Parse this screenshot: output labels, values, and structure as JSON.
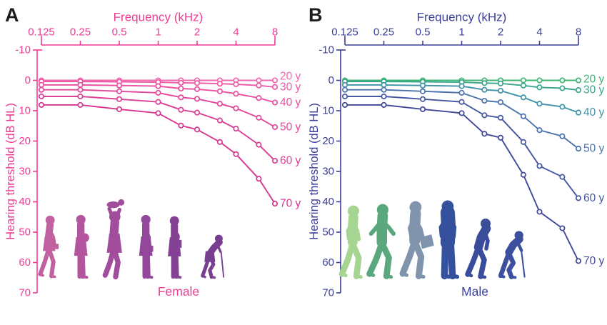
{
  "figure": {
    "background": "#ffffff",
    "panels": [
      {
        "panel_label": "A",
        "panel_label_color": "#1d1d1b",
        "axis_color": "#ee3c95",
        "xlabel": "Frequency (kHz)",
        "ylabel": "Hearing threshold (dB HL)",
        "x_tick_labels": [
          "0.125",
          "0.25",
          "0.5",
          "1",
          "2",
          "4",
          "8"
        ],
        "y_tick_labels": [
          "-10",
          "0",
          "10",
          "20",
          "30",
          "40",
          "50",
          "60",
          "70"
        ],
        "silhouettes": {
          "caption": "Female",
          "items": [
            {
              "name": "young-woman-walking-icon",
              "pose": "walk-bag",
              "color": "#c2619f"
            },
            {
              "name": "pregnant-woman-icon",
              "pose": "stand-pregnant",
              "color": "#b2559e"
            },
            {
              "name": "mother-lifting-baby-icon",
              "pose": "lift-baby",
              "color": "#a14d9c"
            },
            {
              "name": "woman-with-handbag-icon",
              "pose": "stand-bag",
              "color": "#93479a"
            },
            {
              "name": "woman-holding-book-icon",
              "pose": "stand-book",
              "color": "#854295"
            },
            {
              "name": "elderly-woman-cane-icon",
              "pose": "bent-cane-f",
              "color": "#783e90"
            }
          ]
        }
      },
      {
        "panel_label": "B",
        "panel_label_color": "#1d1d1b",
        "axis_color": "#3b3f99",
        "xlabel": "Frequency (kHz)",
        "ylabel": "Hearing threshold (dB HL)",
        "x_tick_labels": [
          "0.125",
          "0.25",
          "0.5",
          "1",
          "2",
          "4",
          "8"
        ],
        "y_tick_labels": [
          "-10",
          "0",
          "10",
          "20",
          "30",
          "40",
          "50",
          "60",
          "70"
        ],
        "silhouettes": {
          "caption": "Male",
          "items": [
            {
              "name": "young-man-walking-icon",
              "pose": "walk",
              "color": "#a6d491"
            },
            {
              "name": "man-walking-icon",
              "pose": "walk-swing",
              "color": "#5ba87e"
            },
            {
              "name": "man-with-briefcase-icon",
              "pose": "walk-briefcase",
              "color": "#8095ad"
            },
            {
              "name": "middle-aged-man-icon",
              "pose": "stand-heavy",
              "color": "#35519e"
            },
            {
              "name": "older-man-stooped-icon",
              "pose": "walk-stoop",
              "color": "#3a4d9b"
            },
            {
              "name": "elderly-man-cane-icon",
              "pose": "bent-cane-m",
              "color": "#3d509f"
            }
          ]
        }
      }
    ]
  },
  "chart_data": [
    {
      "type": "line",
      "title": "A",
      "group": "Female",
      "xlabel": "Frequency (kHz)",
      "ylabel": "Hearing threshold (dB HL)",
      "x_scale": "log2",
      "x": [
        0.125,
        0.25,
        0.5,
        1,
        1.5,
        2,
        3,
        4,
        6,
        8
      ],
      "x_tick_values": [
        0.125,
        0.25,
        0.5,
        1,
        2,
        4,
        8
      ],
      "ylim": [
        -10,
        70
      ],
      "y_axis_inverted": true,
      "grid": false,
      "legend_position": "right-of-line-ends",
      "marker": "open-circle",
      "series": [
        {
          "name": "20 y",
          "color": "#f168ae",
          "values": [
            0,
            0,
            0,
            0,
            0,
            0,
            0,
            0,
            0,
            0
          ]
        },
        {
          "name": "30 y",
          "color": "#ed5aa5",
          "values": [
            0.4,
            0.4,
            0.5,
            0.6,
            0.8,
            0.9,
            1.1,
            1.3,
            1.7,
            2.2
          ]
        },
        {
          "name": "40 y",
          "color": "#e950a0",
          "values": [
            1.5,
            1.5,
            1.7,
            1.9,
            2.7,
            2.9,
            3.6,
            4.4,
            5.8,
            7.3
          ]
        },
        {
          "name": "50 y",
          "color": "#e2479b",
          "values": [
            3.1,
            3.1,
            3.6,
            4.1,
            5.6,
            6.1,
            7.7,
            9.2,
            12.3,
            15.4
          ]
        },
        {
          "name": "60 y",
          "color": "#dc3f96",
          "values": [
            5.3,
            5.3,
            6.2,
            7.1,
            9.7,
            10.6,
            13.2,
            15.9,
            21.2,
            26.5
          ]
        },
        {
          "name": "70 y",
          "color": "#d63791",
          "values": [
            8.1,
            8.1,
            9.5,
            10.8,
            14.9,
            16.2,
            20.3,
            24.3,
            32.4,
            40.6
          ]
        }
      ]
    },
    {
      "type": "line",
      "title": "B",
      "group": "Male",
      "xlabel": "Frequency (kHz)",
      "ylabel": "Hearing threshold (dB HL)",
      "x_scale": "log2",
      "x": [
        0.125,
        0.25,
        0.5,
        1,
        1.5,
        2,
        3,
        4,
        6,
        8
      ],
      "x_tick_values": [
        0.125,
        0.25,
        0.5,
        1,
        2,
        4,
        8
      ],
      "ylim": [
        -10,
        70
      ],
      "y_axis_inverted": true,
      "grid": false,
      "legend_position": "right-of-line-ends",
      "marker": "open-circle",
      "series": [
        {
          "name": "20 y",
          "color": "#3fb573",
          "values": [
            0,
            0,
            0,
            0,
            0,
            0,
            0,
            0,
            0,
            0
          ]
        },
        {
          "name": "30 y",
          "color": "#38a68a",
          "values": [
            0.4,
            0.4,
            0.5,
            0.6,
            0.9,
            1.0,
            1.7,
            2.3,
            2.6,
            3.2
          ]
        },
        {
          "name": "40 y",
          "color": "#3f92a9",
          "values": [
            1.5,
            1.5,
            1.7,
            1.9,
            3.1,
            3.4,
            5.6,
            7.7,
            8.7,
            10.6
          ]
        },
        {
          "name": "50 y",
          "color": "#4a73ae",
          "values": [
            3.1,
            3.1,
            3.6,
            4.1,
            6.7,
            7.2,
            11.8,
            16.4,
            18.4,
            22.5
          ]
        },
        {
          "name": "60 y",
          "color": "#4557a3",
          "values": [
            5.3,
            5.3,
            6.2,
            7.1,
            11.5,
            12.3,
            20.3,
            28.2,
            31.8,
            38.8
          ]
        },
        {
          "name": "70 y",
          "color": "#41489b",
          "values": [
            8.1,
            8.1,
            9.5,
            10.8,
            17.6,
            18.9,
            31.1,
            43.3,
            48.7,
            59.5
          ]
        }
      ]
    }
  ]
}
